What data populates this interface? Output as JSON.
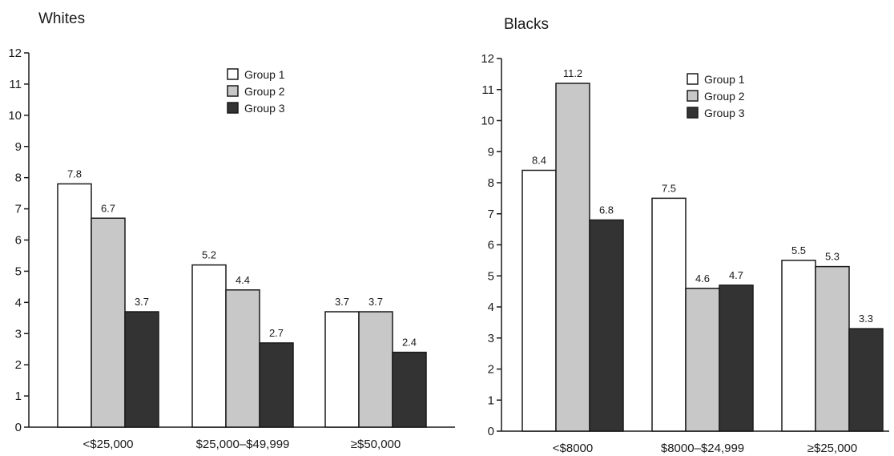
{
  "chart_data": [
    {
      "type": "bar",
      "title": "Whites",
      "categories": [
        "<$25,000",
        "$25,000–$49,999",
        "≥$50,000"
      ],
      "series": [
        {
          "name": "Group 1",
          "color": "#ffffff",
          "values": [
            7.8,
            5.2,
            3.7
          ]
        },
        {
          "name": "Group 2",
          "color": "#c8c8c8",
          "values": [
            6.7,
            4.4,
            3.7
          ]
        },
        {
          "name": "Group 3",
          "color": "#333333",
          "values": [
            3.7,
            2.7,
            2.4
          ]
        }
      ],
      "data_labels": [
        [
          "7.8",
          "5.2",
          "3.7"
        ],
        [
          "6.7",
          "4.4",
          "3.7"
        ],
        [
          "3.7",
          "2.7",
          "2.4"
        ]
      ],
      "ylim": [
        0,
        12
      ],
      "yticks": [
        "0",
        "1",
        "2",
        "3",
        "4",
        "5",
        "6",
        "7",
        "8",
        "9",
        "10",
        "11",
        "12"
      ],
      "xlabel": "",
      "ylabel": "",
      "grid": false,
      "legend": "top-right"
    },
    {
      "type": "bar",
      "title": "Blacks",
      "categories": [
        "<$8000",
        "$8000–$24,999",
        "≥$25,000"
      ],
      "series": [
        {
          "name": "Group 1",
          "color": "#ffffff",
          "values": [
            8.4,
            7.5,
            5.5
          ]
        },
        {
          "name": "Group 2",
          "color": "#c8c8c8",
          "values": [
            11.2,
            4.6,
            5.3
          ]
        },
        {
          "name": "Group 3",
          "color": "#333333",
          "values": [
            6.8,
            4.7,
            3.3
          ]
        }
      ],
      "data_labels": [
        [
          "8.4",
          "7.5",
          "5.5"
        ],
        [
          "11.2",
          "4.6",
          "5.3"
        ],
        [
          "6.8",
          "4.7",
          "3.3"
        ]
      ],
      "ylim": [
        0,
        12
      ],
      "yticks": [
        "0",
        "1",
        "2",
        "3",
        "4",
        "5",
        "6",
        "7",
        "8",
        "9",
        "10",
        "11",
        "12"
      ],
      "xlabel": "",
      "ylabel": "",
      "grid": false,
      "legend": "top-right"
    }
  ]
}
